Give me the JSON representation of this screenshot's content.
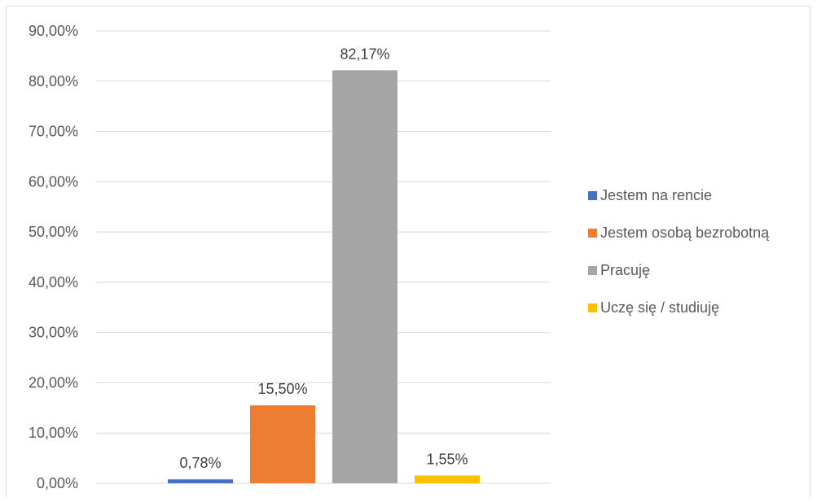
{
  "chart_data": {
    "type": "bar",
    "categories": [
      "Jestem na rencie",
      "Jestem osobą bezrobotną",
      "Pracuję",
      "Uczę się / studiuję"
    ],
    "values": [
      0.78,
      15.5,
      82.17,
      1.55
    ],
    "data_labels": [
      "0,78%",
      "15,50%",
      "82,17%",
      "1,55%"
    ],
    "colors": [
      "#4472c4",
      "#ed7d31",
      "#a5a5a5",
      "#ffc000"
    ],
    "ylim": [
      0,
      90
    ],
    "yticks": [
      0,
      10,
      20,
      30,
      40,
      50,
      60,
      70,
      80,
      90
    ],
    "ytick_labels": [
      "0,00%",
      "10,00%",
      "20,00%",
      "30,00%",
      "40,00%",
      "50,00%",
      "60,00%",
      "70,00%",
      "80,00%",
      "90,00%"
    ],
    "grid": true,
    "legend_position": "right",
    "title": "",
    "xlabel": "",
    "ylabel": ""
  }
}
